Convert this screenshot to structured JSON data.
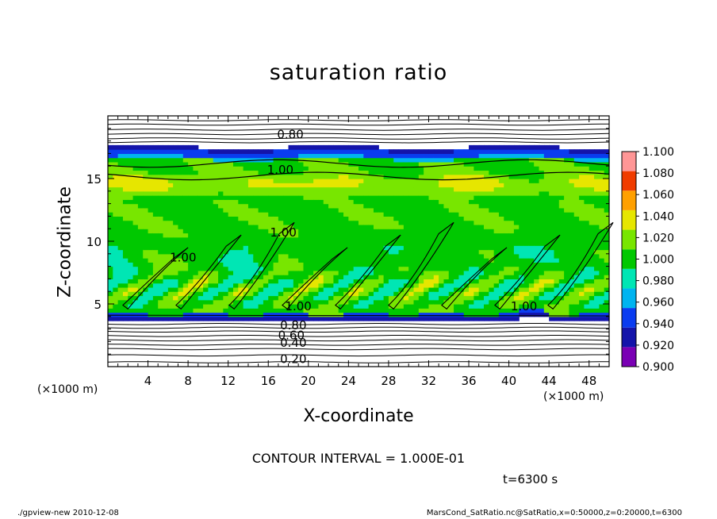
{
  "chart_data": {
    "type": "heatmap",
    "title": "saturation ratio",
    "xlabel": "X-coordinate",
    "ylabel": "Z-coordinate",
    "x_unit": "(×1000 m)",
    "x_unit_secondary": "(×1000 m)",
    "xlim": [
      0,
      50
    ],
    "ylim": [
      0,
      20
    ],
    "x_ticks": [
      4,
      8,
      12,
      16,
      20,
      24,
      28,
      32,
      36,
      40,
      44,
      48
    ],
    "y_ticks": [
      5,
      10,
      15
    ],
    "colorbar": {
      "levels": [
        0.9,
        0.92,
        0.94,
        0.96,
        0.98,
        1.0,
        1.02,
        1.04,
        1.06,
        1.08,
        1.1
      ],
      "labels": [
        "0.900",
        "0.920",
        "0.940",
        "0.960",
        "0.980",
        "1.000",
        "1.020",
        "1.040",
        "1.060",
        "1.080",
        "1.100"
      ],
      "colors": [
        "#7a00b4",
        "#1414aa",
        "#0a3cf0",
        "#00b4f0",
        "#00e6b4",
        "#00c800",
        "#78e600",
        "#e6e600",
        "#ffa000",
        "#f03c00",
        "#ff9696"
      ]
    },
    "contour_labels": [
      {
        "text": "0.80",
        "x": 18.2,
        "z": 18.5
      },
      {
        "text": "1.00",
        "x": 17.2,
        "z": 15.7
      },
      {
        "text": "1.00",
        "x": 17.5,
        "z": 10.7
      },
      {
        "text": "1.00",
        "x": 7.5,
        "z": 8.7
      },
      {
        "text": "1.00",
        "x": 19.0,
        "z": 4.8
      },
      {
        "text": "1.00",
        "x": 41.5,
        "z": 4.8
      },
      {
        "text": "0.80",
        "x": 18.5,
        "z": 3.3
      },
      {
        "text": "0.60",
        "x": 18.3,
        "z": 2.5
      },
      {
        "text": "0.40",
        "x": 18.5,
        "z": 1.9
      },
      {
        "text": "0.20",
        "x": 18.5,
        "z": 0.6
      }
    ],
    "field_description": "supersaturated layer z~4-17 km; band near z~15 km ~1.04-1.06; wave-like features 5-10 km; undersaturated above 17 km and below 4 km",
    "grid": false
  },
  "annotations": {
    "contour_interval": "CONTOUR INTERVAL = 1.000E-01",
    "time": "t=6300 s",
    "footer_left": "./gpview-new  2010-12-08",
    "footer_right": "MarsCond_SatRatio.nc@SatRatio,x=0:50000,z=0:20000,t=6300"
  }
}
